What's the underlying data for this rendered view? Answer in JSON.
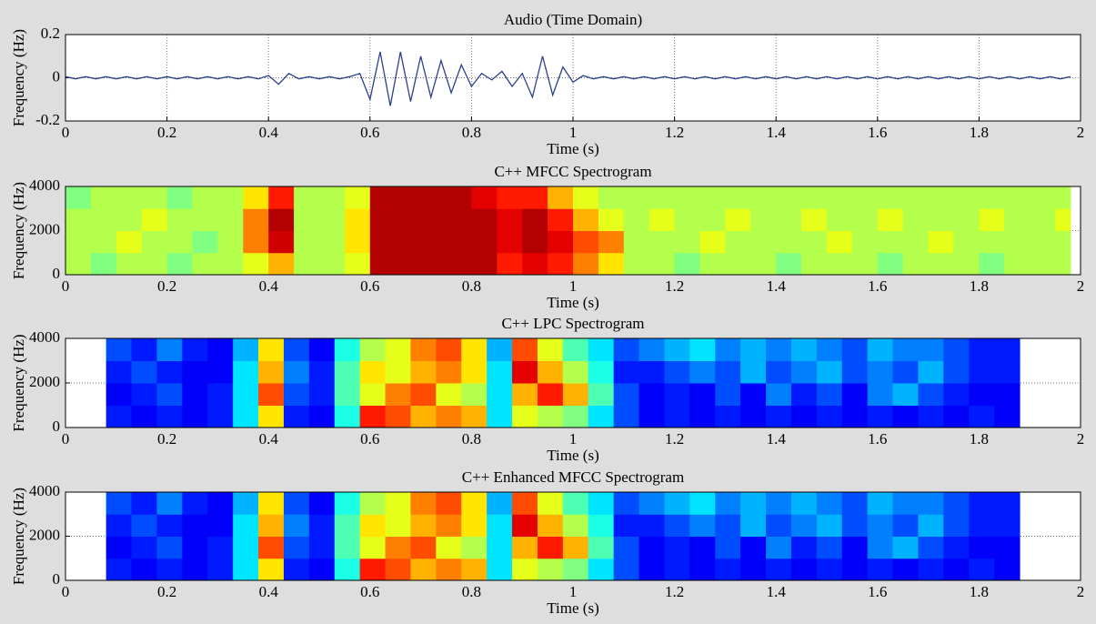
{
  "chart_data": [
    {
      "type": "line",
      "title": "Audio (Time Domain)",
      "xlabel": "Time (s)",
      "ylabel": "Frequency (Hz)",
      "color": "#2b3f8f",
      "grid": true,
      "xlim": [
        0,
        2
      ],
      "ylim": [
        -0.2,
        0.2
      ],
      "xticks": [
        0,
        0.2,
        0.4,
        0.6,
        0.8,
        1,
        1.2,
        1.4,
        1.6,
        1.8,
        2
      ],
      "yticks": [
        -0.2,
        0,
        0.2
      ],
      "x": [
        0,
        0.02,
        0.04,
        0.06,
        0.08,
        0.1,
        0.12,
        0.14,
        0.16,
        0.18,
        0.2,
        0.22,
        0.24,
        0.26,
        0.28,
        0.3,
        0.32,
        0.34,
        0.36,
        0.38,
        0.4,
        0.42,
        0.44,
        0.46,
        0.48,
        0.5,
        0.52,
        0.54,
        0.56,
        0.58,
        0.6,
        0.62,
        0.64,
        0.66,
        0.68,
        0.7,
        0.72,
        0.74,
        0.76,
        0.78,
        0.8,
        0.82,
        0.84,
        0.86,
        0.88,
        0.9,
        0.92,
        0.94,
        0.96,
        0.98,
        1,
        1.02,
        1.04,
        1.06,
        1.08,
        1.1,
        1.12,
        1.14,
        1.16,
        1.18,
        1.2,
        1.22,
        1.24,
        1.26,
        1.28,
        1.3,
        1.32,
        1.34,
        1.36,
        1.38,
        1.4,
        1.42,
        1.44,
        1.46,
        1.48,
        1.5,
        1.52,
        1.54,
        1.56,
        1.58,
        1.6,
        1.62,
        1.64,
        1.66,
        1.68,
        1.7,
        1.72,
        1.74,
        1.76,
        1.78,
        1.8,
        1.82,
        1.84,
        1.86,
        1.88,
        1.9,
        1.92,
        1.94,
        1.96,
        1.98
      ],
      "values": [
        0.005,
        -0.005,
        0.005,
        -0.005,
        0.005,
        -0.005,
        0.005,
        -0.005,
        0.005,
        -0.005,
        0.005,
        -0.005,
        0.005,
        -0.005,
        0.005,
        -0.005,
        0.005,
        -0.005,
        0.005,
        -0.005,
        0.01,
        -0.03,
        0.02,
        -0.005,
        0.005,
        -0.005,
        0.005,
        -0.005,
        0.005,
        0.02,
        -0.1,
        0.12,
        -0.13,
        0.12,
        -0.11,
        0.1,
        -0.09,
        0.08,
        -0.07,
        0.06,
        -0.04,
        0.02,
        -0.01,
        0.03,
        -0.04,
        0.02,
        -0.09,
        0.1,
        -0.08,
        0.05,
        -0.02,
        0.01,
        -0.005,
        0.005,
        -0.005,
        0.005,
        -0.005,
        0.005,
        -0.005,
        0.005,
        -0.005,
        0.005,
        -0.005,
        0.005,
        -0.005,
        0.005,
        -0.005,
        0.005,
        -0.005,
        0.005,
        -0.005,
        0.005,
        -0.005,
        0.005,
        -0.005,
        0.005,
        -0.005,
        0.005,
        -0.005,
        0.005,
        -0.005,
        0.005,
        -0.005,
        0.005,
        -0.005,
        0.005,
        -0.005,
        0.005,
        -0.005,
        0.005,
        -0.005,
        0.005,
        -0.005,
        0.005,
        -0.005,
        0.005,
        -0.005,
        0.005,
        -0.005,
        0.005
      ]
    },
    {
      "type": "heatmap",
      "title": "C++ MFCC Spectrogram",
      "xlabel": "Time (s)",
      "ylabel": "Frequency (Hz)",
      "colormap": "jet",
      "grid": true,
      "xlim": [
        0,
        2
      ],
      "ylim": [
        0,
        4000
      ],
      "xticks": [
        0,
        0.2,
        0.4,
        0.6,
        0.8,
        1,
        1.2,
        1.4,
        1.6,
        1.8,
        2
      ],
      "yticks": [
        0,
        2000,
        4000
      ],
      "zlim": [
        0,
        1
      ],
      "xbins": [
        0,
        0.05,
        0.1,
        0.15,
        0.2,
        0.25,
        0.3,
        0.35,
        0.4,
        0.45,
        0.5,
        0.55,
        0.6,
        0.65,
        0.7,
        0.75,
        0.8,
        0.85,
        0.9,
        0.95,
        1,
        1.05,
        1.1,
        1.15,
        1.2,
        1.25,
        1.3,
        1.35,
        1.4,
        1.45,
        1.5,
        1.55,
        1.6,
        1.65,
        1.7,
        1.75,
        1.8,
        1.85,
        1.9,
        1.95,
        1.98
      ],
      "ybins": [
        0,
        1000,
        2000,
        3000,
        4000
      ],
      "z": [
        [
          0.55,
          0.5,
          0.55,
          0.55,
          0.5,
          0.55,
          0.55,
          0.6,
          0.7,
          0.55,
          0.55,
          0.6,
          0.95,
          0.95,
          0.95,
          0.95,
          0.95,
          0.85,
          0.9,
          0.85,
          0.75,
          0.65,
          0.55,
          0.55,
          0.5,
          0.55,
          0.55,
          0.55,
          0.5,
          0.55,
          0.55,
          0.55,
          0.5,
          0.55,
          0.55,
          0.55,
          0.5,
          0.55,
          0.55,
          0.55
        ],
        [
          0.55,
          0.55,
          0.6,
          0.55,
          0.55,
          0.5,
          0.55,
          0.75,
          0.92,
          0.55,
          0.55,
          0.65,
          0.95,
          0.95,
          0.95,
          0.95,
          0.95,
          0.9,
          0.95,
          0.9,
          0.8,
          0.75,
          0.55,
          0.55,
          0.55,
          0.6,
          0.55,
          0.55,
          0.55,
          0.55,
          0.6,
          0.55,
          0.55,
          0.55,
          0.6,
          0.55,
          0.55,
          0.55,
          0.55,
          0.55
        ],
        [
          0.55,
          0.55,
          0.55,
          0.6,
          0.55,
          0.55,
          0.55,
          0.75,
          0.95,
          0.55,
          0.55,
          0.65,
          0.95,
          0.95,
          0.95,
          0.95,
          0.95,
          0.9,
          0.95,
          0.85,
          0.7,
          0.6,
          0.55,
          0.6,
          0.55,
          0.55,
          0.6,
          0.55,
          0.55,
          0.6,
          0.55,
          0.55,
          0.6,
          0.55,
          0.55,
          0.55,
          0.6,
          0.55,
          0.55,
          0.6
        ],
        [
          0.5,
          0.55,
          0.55,
          0.55,
          0.5,
          0.55,
          0.55,
          0.65,
          0.85,
          0.55,
          0.55,
          0.6,
          0.95,
          0.95,
          0.95,
          0.95,
          0.9,
          0.85,
          0.85,
          0.7,
          0.6,
          0.55,
          0.55,
          0.55,
          0.55,
          0.55,
          0.55,
          0.55,
          0.55,
          0.55,
          0.55,
          0.55,
          0.55,
          0.55,
          0.55,
          0.55,
          0.55,
          0.55,
          0.55,
          0.55
        ]
      ]
    },
    {
      "type": "heatmap",
      "title": "C++ LPC Spectrogram",
      "xlabel": "Time (s)",
      "ylabel": "Frequency (Hz)",
      "colormap": "jet",
      "grid": true,
      "xlim": [
        0,
        2
      ],
      "ylim": [
        0,
        4000
      ],
      "xticks": [
        0,
        0.2,
        0.4,
        0.6,
        0.8,
        1,
        1.2,
        1.4,
        1.6,
        1.8,
        2
      ],
      "yticks": [
        0,
        2000,
        4000
      ],
      "zlim": [
        0,
        1
      ],
      "xbins": [
        0.08,
        0.13,
        0.18,
        0.23,
        0.28,
        0.33,
        0.38,
        0.43,
        0.48,
        0.53,
        0.58,
        0.63,
        0.68,
        0.73,
        0.78,
        0.83,
        0.88,
        0.93,
        0.98,
        1.03,
        1.08,
        1.13,
        1.18,
        1.23,
        1.28,
        1.33,
        1.38,
        1.43,
        1.48,
        1.53,
        1.58,
        1.63,
        1.68,
        1.73,
        1.78,
        1.83,
        1.88
      ],
      "ybins": [
        0,
        1000,
        2000,
        3000,
        4000
      ],
      "z": [
        [
          0.15,
          0.12,
          0.15,
          0.12,
          0.15,
          0.35,
          0.65,
          0.15,
          0.12,
          0.4,
          0.85,
          0.8,
          0.7,
          0.75,
          0.7,
          0.35,
          0.6,
          0.55,
          0.5,
          0.35,
          0.2,
          0.12,
          0.15,
          0.12,
          0.15,
          0.12,
          0.15,
          0.12,
          0.15,
          0.12,
          0.15,
          0.12,
          0.15,
          0.12,
          0.15,
          0.12
        ],
        [
          0.12,
          0.15,
          0.2,
          0.12,
          0.15,
          0.35,
          0.8,
          0.2,
          0.15,
          0.45,
          0.6,
          0.75,
          0.8,
          0.6,
          0.55,
          0.35,
          0.7,
          0.85,
          0.7,
          0.45,
          0.2,
          0.12,
          0.15,
          0.12,
          0.2,
          0.12,
          0.25,
          0.15,
          0.2,
          0.12,
          0.25,
          0.3,
          0.2,
          0.15,
          0.12,
          0.12
        ],
        [
          0.15,
          0.2,
          0.15,
          0.12,
          0.12,
          0.35,
          0.7,
          0.25,
          0.15,
          0.45,
          0.65,
          0.6,
          0.7,
          0.75,
          0.65,
          0.35,
          0.9,
          0.7,
          0.55,
          0.4,
          0.15,
          0.15,
          0.2,
          0.25,
          0.2,
          0.3,
          0.2,
          0.25,
          0.3,
          0.2,
          0.25,
          0.2,
          0.3,
          0.2,
          0.15,
          0.15
        ],
        [
          0.2,
          0.15,
          0.25,
          0.15,
          0.12,
          0.3,
          0.65,
          0.2,
          0.12,
          0.4,
          0.55,
          0.6,
          0.75,
          0.8,
          0.65,
          0.3,
          0.8,
          0.6,
          0.45,
          0.35,
          0.2,
          0.25,
          0.3,
          0.35,
          0.25,
          0.3,
          0.25,
          0.3,
          0.25,
          0.2,
          0.3,
          0.25,
          0.25,
          0.2,
          0.15,
          0.15
        ]
      ]
    },
    {
      "type": "heatmap",
      "title": "C++ Enhanced MFCC Spectrogram",
      "xlabel": "Time (s)",
      "ylabel": "Frequency (Hz)",
      "colormap": "jet",
      "grid": true,
      "xlim": [
        0,
        2
      ],
      "ylim": [
        0,
        4000
      ],
      "xticks": [
        0,
        0.2,
        0.4,
        0.6,
        0.8,
        1,
        1.2,
        1.4,
        1.6,
        1.8,
        2
      ],
      "yticks": [
        0,
        2000,
        4000
      ],
      "zlim": [
        0,
        1
      ],
      "xbins": [
        0.08,
        0.13,
        0.18,
        0.23,
        0.28,
        0.33,
        0.38,
        0.43,
        0.48,
        0.53,
        0.58,
        0.63,
        0.68,
        0.73,
        0.78,
        0.83,
        0.88,
        0.93,
        0.98,
        1.03,
        1.08,
        1.13,
        1.18,
        1.23,
        1.28,
        1.33,
        1.38,
        1.43,
        1.48,
        1.53,
        1.58,
        1.63,
        1.68,
        1.73,
        1.78,
        1.83,
        1.88
      ],
      "ybins": [
        0,
        1000,
        2000,
        3000,
        4000
      ],
      "z": [
        [
          0.15,
          0.12,
          0.15,
          0.12,
          0.15,
          0.35,
          0.65,
          0.15,
          0.12,
          0.4,
          0.85,
          0.8,
          0.7,
          0.75,
          0.7,
          0.35,
          0.6,
          0.55,
          0.5,
          0.35,
          0.2,
          0.12,
          0.15,
          0.12,
          0.15,
          0.12,
          0.15,
          0.12,
          0.15,
          0.12,
          0.15,
          0.12,
          0.15,
          0.12,
          0.15,
          0.12
        ],
        [
          0.12,
          0.15,
          0.2,
          0.12,
          0.15,
          0.35,
          0.8,
          0.2,
          0.15,
          0.45,
          0.6,
          0.75,
          0.8,
          0.6,
          0.55,
          0.35,
          0.7,
          0.85,
          0.7,
          0.45,
          0.2,
          0.12,
          0.15,
          0.12,
          0.2,
          0.12,
          0.25,
          0.15,
          0.2,
          0.12,
          0.25,
          0.3,
          0.2,
          0.15,
          0.12,
          0.12
        ],
        [
          0.15,
          0.2,
          0.15,
          0.12,
          0.12,
          0.35,
          0.7,
          0.25,
          0.15,
          0.45,
          0.65,
          0.6,
          0.7,
          0.75,
          0.65,
          0.35,
          0.9,
          0.7,
          0.55,
          0.4,
          0.15,
          0.15,
          0.2,
          0.25,
          0.2,
          0.3,
          0.2,
          0.25,
          0.3,
          0.2,
          0.25,
          0.2,
          0.3,
          0.2,
          0.15,
          0.15
        ],
        [
          0.2,
          0.15,
          0.25,
          0.15,
          0.12,
          0.3,
          0.65,
          0.2,
          0.12,
          0.4,
          0.55,
          0.6,
          0.75,
          0.8,
          0.65,
          0.3,
          0.8,
          0.6,
          0.45,
          0.35,
          0.2,
          0.25,
          0.3,
          0.35,
          0.25,
          0.3,
          0.25,
          0.3,
          0.25,
          0.2,
          0.3,
          0.25,
          0.25,
          0.2,
          0.15,
          0.15
        ]
      ]
    }
  ]
}
